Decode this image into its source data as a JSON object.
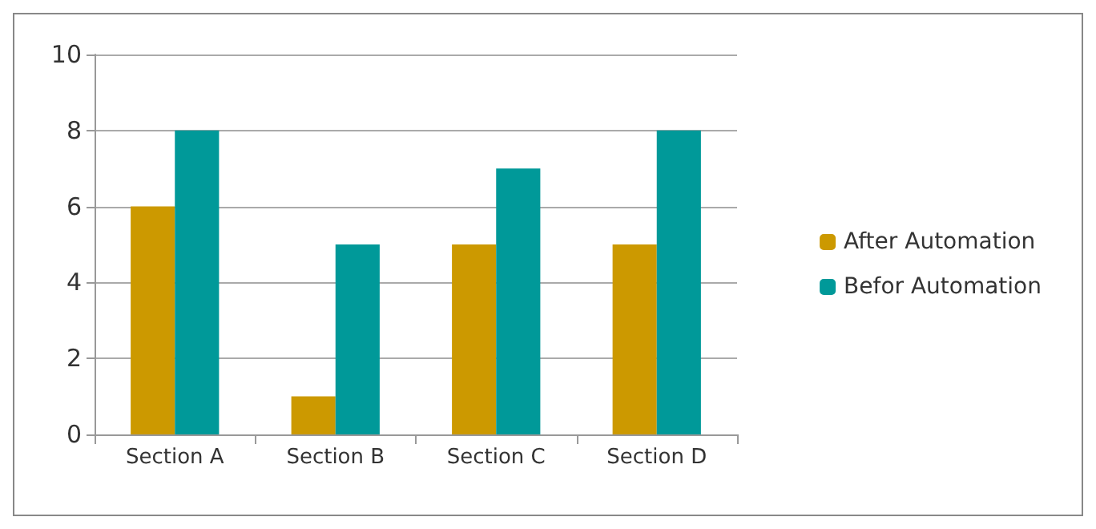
{
  "chart_data": {
    "type": "bar",
    "categories": [
      "Section A",
      "Section B",
      "Section C",
      "Section D"
    ],
    "series": [
      {
        "name": "After Automation",
        "color": "#cc9900",
        "values": [
          6,
          1,
          5,
          5
        ]
      },
      {
        "name": "Befor Automation",
        "color": "#009999",
        "values": [
          8,
          5,
          7,
          8
        ]
      }
    ],
    "ylim": [
      0,
      10
    ],
    "yticks": [
      0,
      2,
      4,
      6,
      8,
      10
    ],
    "grid": "y",
    "legend": "right"
  }
}
